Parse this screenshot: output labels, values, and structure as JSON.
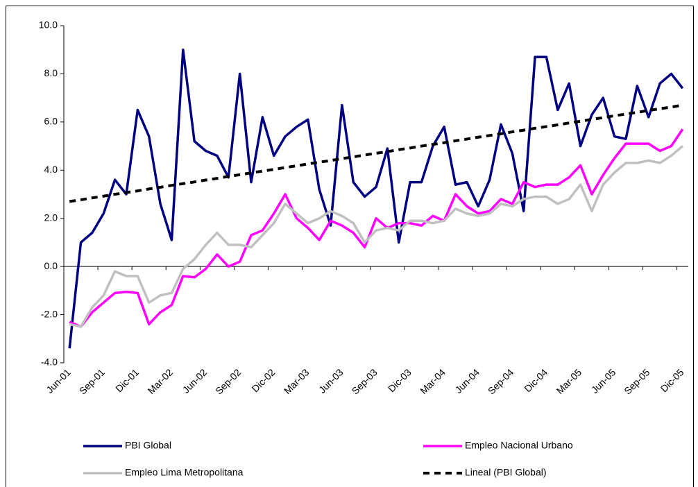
{
  "chart_data": {
    "type": "line",
    "categories": [
      "Jun-01",
      null,
      null,
      "Sep-01",
      null,
      null,
      "Dic-01",
      null,
      null,
      "Mar-02",
      null,
      null,
      "Jun-02",
      null,
      null,
      "Sep-02",
      null,
      null,
      "Dic-02",
      null,
      null,
      "Mar-03",
      null,
      null,
      "Jun-03",
      null,
      null,
      "Sep-03",
      null,
      null,
      "Dic-03",
      null,
      null,
      "Mar-04",
      null,
      null,
      "Jun-04",
      null,
      null,
      "Sep-04",
      null,
      null,
      "Dic-04",
      null,
      null,
      "Mar-05",
      null,
      null,
      "Jun-05",
      null,
      null,
      "Sep-05",
      null,
      null,
      "Dic-05"
    ],
    "series": [
      {
        "name": "PBI Global",
        "color": "#000080",
        "values": [
          -3.4,
          1.0,
          1.4,
          2.2,
          3.6,
          3.0,
          6.5,
          5.4,
          2.6,
          1.1,
          9.0,
          5.2,
          4.8,
          4.6,
          3.7,
          8.0,
          3.5,
          6.2,
          4.6,
          5.4,
          5.8,
          6.1,
          3.2,
          1.7,
          6.7,
          3.5,
          2.9,
          3.3,
          4.9,
          1.0,
          3.5,
          3.5,
          5.0,
          5.8,
          3.4,
          3.5,
          2.5,
          3.6,
          5.9,
          4.7,
          2.3,
          8.7,
          8.7,
          6.5,
          7.6,
          5.0,
          6.3,
          7.0,
          5.4,
          5.3,
          7.5,
          6.2,
          7.6,
          8.0,
          7.4
        ]
      },
      {
        "name": "Empleo  Nacional Urbano",
        "color": "#ff00ff",
        "values": [
          -2.3,
          -2.5,
          -1.9,
          -1.5,
          -1.1,
          -1.05,
          -1.1,
          -2.4,
          -1.9,
          -1.6,
          -0.4,
          -0.45,
          -0.1,
          0.5,
          0.0,
          0.2,
          1.3,
          1.5,
          2.2,
          3.0,
          2.0,
          1.6,
          1.1,
          1.9,
          1.7,
          1.4,
          0.8,
          2.0,
          1.6,
          1.8,
          1.8,
          1.7,
          2.1,
          1.9,
          3.0,
          2.5,
          2.2,
          2.3,
          2.8,
          2.6,
          3.5,
          3.3,
          3.4,
          3.4,
          3.7,
          4.2,
          3.0,
          3.8,
          4.5,
          5.1,
          5.1,
          5.1,
          4.8,
          5.0,
          5.7
        ]
      },
      {
        "name": "Empleo  Lima Metropolitana",
        "color": "#c0c0c0",
        "values": [
          -2.4,
          -2.5,
          -1.7,
          -1.2,
          -0.2,
          -0.4,
          -0.4,
          -1.5,
          -1.2,
          -1.1,
          -0.1,
          0.3,
          0.9,
          1.4,
          0.9,
          0.9,
          0.8,
          1.3,
          1.8,
          2.6,
          2.2,
          1.8,
          2.0,
          2.3,
          2.1,
          1.8,
          1.0,
          1.5,
          1.6,
          1.5,
          1.9,
          1.9,
          1.8,
          1.9,
          2.4,
          2.2,
          2.1,
          2.2,
          2.6,
          2.5,
          2.8,
          2.9,
          2.9,
          2.6,
          2.8,
          3.4,
          2.3,
          3.4,
          3.9,
          4.3,
          4.3,
          4.4,
          4.3,
          4.6,
          5.0
        ]
      },
      {
        "name": "Lineal (PBI Global)",
        "color": "#000000",
        "dashed": true,
        "values": [
          2.7,
          2.77,
          2.85,
          2.92,
          3.0,
          3.07,
          3.14,
          3.22,
          3.29,
          3.37,
          3.44,
          3.51,
          3.59,
          3.66,
          3.74,
          3.81,
          3.89,
          3.96,
          4.03,
          4.11,
          4.18,
          4.26,
          4.33,
          4.4,
          4.48,
          4.55,
          4.63,
          4.7,
          4.77,
          4.85,
          4.92,
          5.0,
          5.07,
          5.14,
          5.22,
          5.29,
          5.37,
          5.44,
          5.51,
          5.59,
          5.66,
          5.74,
          5.81,
          5.88,
          5.96,
          6.03,
          6.11,
          6.18,
          6.26,
          6.33,
          6.4,
          6.48,
          6.55,
          6.62,
          6.7
        ]
      }
    ],
    "ylim": [
      -4,
      10
    ],
    "yticks": [
      {
        "value": -4,
        "label": "-4.0"
      },
      {
        "value": -2,
        "label": "-2.0"
      },
      {
        "value": 0,
        "label": "0.0"
      },
      {
        "value": 2,
        "label": "2.0"
      },
      {
        "value": 4,
        "label": "4.0"
      },
      {
        "value": 6,
        "label": "6.0"
      },
      {
        "value": 8,
        "label": "8.0"
      },
      {
        "value": 10,
        "label": "10.0"
      }
    ],
    "legend": "bottom"
  }
}
